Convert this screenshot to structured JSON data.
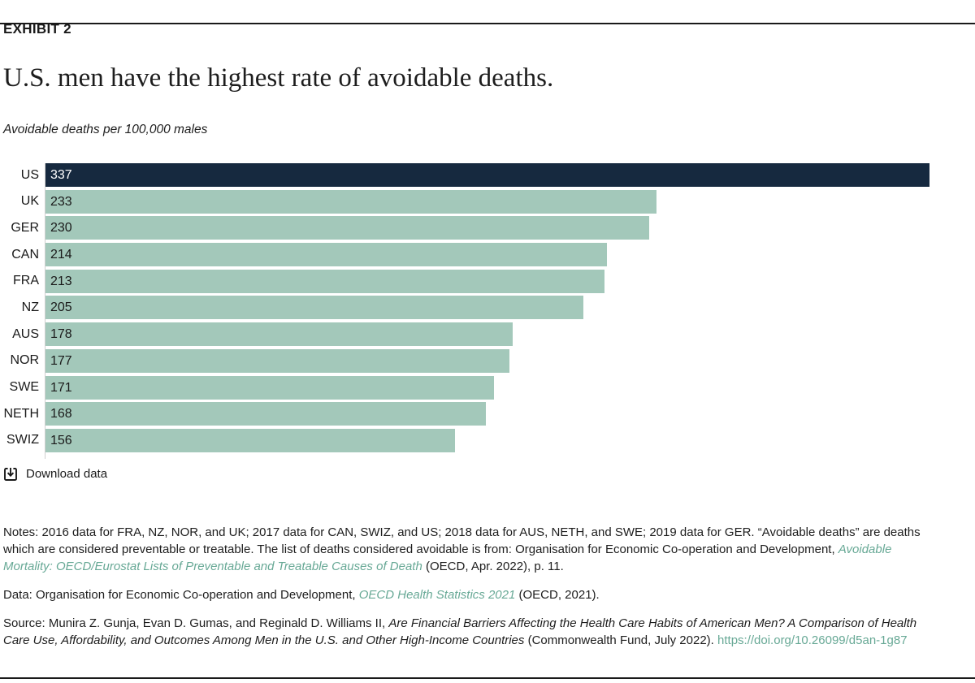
{
  "page": {
    "exhibit_label": "EXHIBIT 2",
    "title": "U.S. men have the highest rate of avoidable deaths.",
    "subtitle": "Avoidable deaths per 100,000 males"
  },
  "chart_data": {
    "type": "bar",
    "orientation": "horizontal",
    "title": "U.S. men have the highest rate of avoidable deaths.",
    "xlabel": "Avoidable deaths per 100,000 males",
    "categories": [
      "US",
      "UK",
      "GER",
      "CAN",
      "FRA",
      "NZ",
      "AUS",
      "NOR",
      "SWE",
      "NETH",
      "SWIZ"
    ],
    "values": [
      337,
      233,
      230,
      214,
      213,
      205,
      178,
      177,
      171,
      168,
      156
    ],
    "xlim": [
      0,
      337
    ],
    "grid": false,
    "legend": "none",
    "colors": {
      "highlight_bar": "#16293f",
      "default_bar": "#a3c8ba",
      "highlight_value_text": "#ffffff",
      "default_value_text": "#1a1a1a"
    },
    "highlight_category": "US"
  },
  "download": {
    "label": "Download data"
  },
  "notes": {
    "prefix": "Notes: 2016 data for FRA, NZ, NOR, and UK; 2017 data for CAN, SWIZ, and US; 2018 data for AUS, NETH, and SWE; 2019 data for GER. “Avoidable deaths” are deaths which are considered preventable or treatable. The list of deaths considered avoidable is from: Organisation for Economic Co-operation and Development, ",
    "link_text": "Avoidable Mortality: OECD/Eurostat Lists of Preventable and Treatable Causes of Death",
    "suffix": " (OECD, Apr. 2022), p. 11."
  },
  "data_line": {
    "prefix": "Data: Organisation for Economic Co-operation and Development, ",
    "link_text": "OECD Health Statistics 2021",
    "suffix": " (OECD, 2021)."
  },
  "source_line": {
    "prefix": "Source: Munira Z. Gunja, Evan D. Gumas, and Reginald D. Williams II, ",
    "italic_text": "Are Financial Barriers Affecting the Health Care Habits of American Men? A Comparison of Health Care Use, Affordability, and Outcomes Among Men in the U.S. and Other High-Income Countries",
    "mid": " (Commonwealth Fund, July 2022). ",
    "link_text": "https://doi.org/10.26099/d5an-1g87"
  },
  "theme": {
    "link_color": "#68a996",
    "text_color": "#1d1d1d",
    "rule_color": "#1a1a1a",
    "axis_color": "#cfcfcf"
  }
}
